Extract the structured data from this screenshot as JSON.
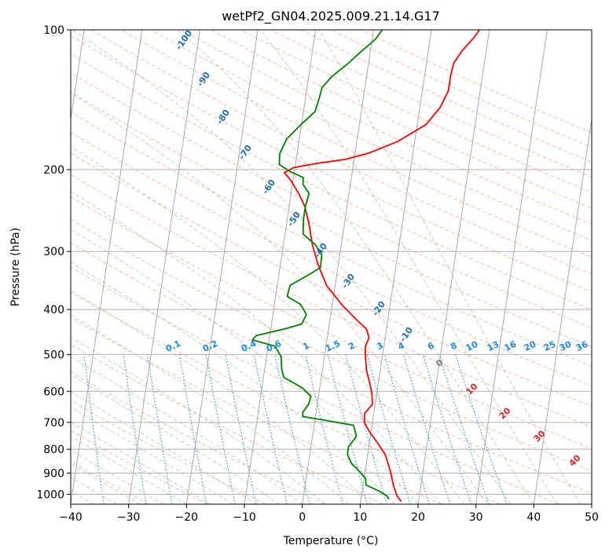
{
  "chart_data": {
    "type": "line",
    "title": "wetPf2_GN04.2025.009.21.14.G17",
    "xlabel": "Temperature (°C)",
    "ylabel": "Pressure (hPa)",
    "xlim": [
      -40,
      50
    ],
    "ylim": [
      1050,
      100
    ],
    "y_scale": "log",
    "x_ticks": [
      -40,
      -30,
      -20,
      -10,
      0,
      10,
      20,
      30,
      40,
      50
    ],
    "x_tick_labels": [
      "−40",
      "−30",
      "−20",
      "−10",
      "0",
      "10",
      "20",
      "30",
      "40",
      "50"
    ],
    "y_ticks": [
      100,
      200,
      300,
      400,
      500,
      600,
      700,
      800,
      900,
      1000
    ],
    "y_tick_labels": [
      "100",
      "200",
      "300",
      "400",
      "500",
      "600",
      "700",
      "800",
      "900",
      "1000"
    ],
    "grid": true,
    "colors": {
      "temperature": "#ff0000",
      "dewpoint": "#008000",
      "dry_adiabat": "#fa8060",
      "moist_adiabat": "#7cba7c",
      "mixing_ratio": "#1e88e5",
      "isotherm": "#a0a0a0",
      "label_dark": "#1f6fae",
      "label_light": "#1e88e5",
      "label_red": "#d62728",
      "label_gray": "#808080"
    },
    "series": [
      {
        "key": "temperature",
        "color": "#ff0000",
        "points": [
          [
            17,
            1035
          ],
          [
            16.2,
            1010
          ],
          [
            15.3,
            960
          ],
          [
            14.5,
            900
          ],
          [
            13.8,
            860
          ],
          [
            13,
            820
          ],
          [
            11.6,
            780
          ],
          [
            9.6,
            730
          ],
          [
            8.6,
            700
          ],
          [
            8.4,
            670
          ],
          [
            9.5,
            640
          ],
          [
            9.2,
            610
          ],
          [
            8.6,
            580
          ],
          [
            7.6,
            540
          ],
          [
            7,
            500
          ],
          [
            6.8,
            480
          ],
          [
            7.2,
            460
          ],
          [
            6.5,
            440
          ],
          [
            4.5,
            420
          ],
          [
            1.6,
            390
          ],
          [
            -1.5,
            355
          ],
          [
            -3.5,
            320
          ],
          [
            -5,
            290
          ],
          [
            -6.2,
            260
          ],
          [
            -7.3,
            240
          ],
          [
            -8.7,
            225
          ],
          [
            -10.5,
            210
          ],
          [
            -11.7,
            203
          ],
          [
            -10.3,
            198
          ],
          [
            -6.5,
            194
          ],
          [
            -1.5,
            190
          ],
          [
            2.5,
            184
          ],
          [
            7,
            174
          ],
          [
            11.5,
            160
          ],
          [
            13.5,
            147
          ],
          [
            14.5,
            135
          ],
          [
            14.5,
            125
          ],
          [
            14.7,
            118
          ],
          [
            15.8,
            111
          ],
          [
            17.5,
            104
          ],
          [
            18.3,
            100
          ]
        ]
      },
      {
        "key": "dewpoint",
        "color": "#008000",
        "points": [
          [
            14.8,
            1025
          ],
          [
            14.5,
            1010
          ],
          [
            13,
            985
          ],
          [
            10.5,
            955
          ],
          [
            10.3,
            925
          ],
          [
            8.7,
            885
          ],
          [
            7.5,
            860
          ],
          [
            6.5,
            820
          ],
          [
            6.5,
            790
          ],
          [
            7.6,
            750
          ],
          [
            6.8,
            710
          ],
          [
            1,
            690
          ],
          [
            -2.2,
            680
          ],
          [
            -2.3,
            665
          ],
          [
            -1.5,
            640
          ],
          [
            -1.3,
            615
          ],
          [
            -3,
            590
          ],
          [
            -6.5,
            560
          ],
          [
            -7.1,
            535
          ],
          [
            -7.5,
            505
          ],
          [
            -8.8,
            480
          ],
          [
            -12.9,
            465
          ],
          [
            -12.3,
            455
          ],
          [
            -7.5,
            440
          ],
          [
            -4.8,
            430
          ],
          [
            -4.2,
            410
          ],
          [
            -5.5,
            390
          ],
          [
            -8,
            375
          ],
          [
            -7.8,
            355
          ],
          [
            -5.4,
            340
          ],
          [
            -3,
            325
          ],
          [
            -3.1,
            305
          ],
          [
            -4.5,
            290
          ],
          [
            -6.9,
            275
          ],
          [
            -7.2,
            255
          ],
          [
            -7.2,
            240
          ],
          [
            -6.9,
            225
          ],
          [
            -8.2,
            215
          ],
          [
            -8.3,
            208
          ],
          [
            -10.7,
            202
          ],
          [
            -12.8,
            195
          ],
          [
            -13,
            185
          ],
          [
            -12.2,
            172
          ],
          [
            -10.1,
            160
          ],
          [
            -8,
            150
          ],
          [
            -7.6,
            140
          ],
          [
            -7.4,
            133
          ],
          [
            -6,
            126
          ],
          [
            -3.5,
            118
          ],
          [
            -1.5,
            111
          ],
          [
            0.5,
            105
          ],
          [
            1.5,
            100
          ]
        ]
      }
    ],
    "annotations": {
      "moist_adiabat_labels": [
        "-100",
        "-90",
        "-80",
        "-70",
        "-60",
        "-50",
        "-40",
        "-30",
        "-20",
        "-10"
      ],
      "mixing_ratio_labels": [
        "0.1",
        "0.2",
        "0.4",
        "0.6",
        "1",
        "1.5",
        "2",
        "3",
        "4",
        "6",
        "8",
        "10",
        "13",
        "16",
        "20",
        "25",
        "30",
        "36"
      ],
      "isotherm_labels": [
        "0",
        "10",
        "20",
        "30",
        "40"
      ]
    }
  }
}
